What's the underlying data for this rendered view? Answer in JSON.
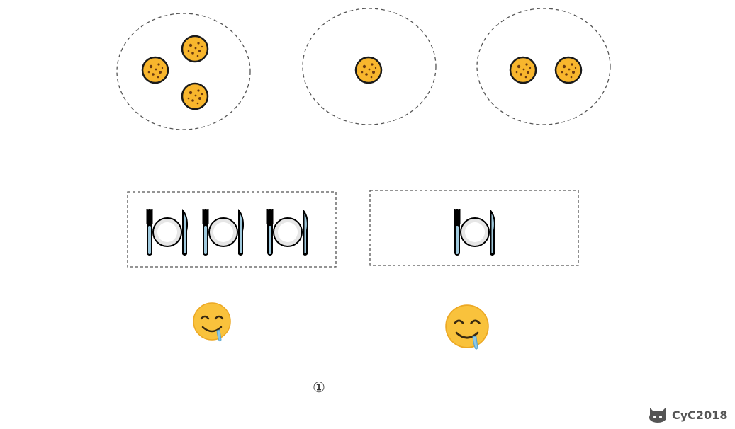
{
  "plates": [
    {
      "cookies": 3
    },
    {
      "cookies": 1
    },
    {
      "cookies": 2
    }
  ],
  "children": [
    {
      "place_settings": 3
    },
    {
      "place_settings": 1
    }
  ],
  "step_label": "①",
  "watermark": {
    "icon": "github-cat-icon",
    "text": "CyC2018"
  },
  "colors": {
    "cookie": "#F8B62D",
    "cookie_outline": "#1A1A1A",
    "cookie_chip": "#6B3A10",
    "dashed_border": "#555555",
    "face": "#F9C23C",
    "drool": "#8EC8E8",
    "cutlery": "#9FC9DD",
    "plate": "#FFFFFF",
    "watermark": "#555555"
  }
}
